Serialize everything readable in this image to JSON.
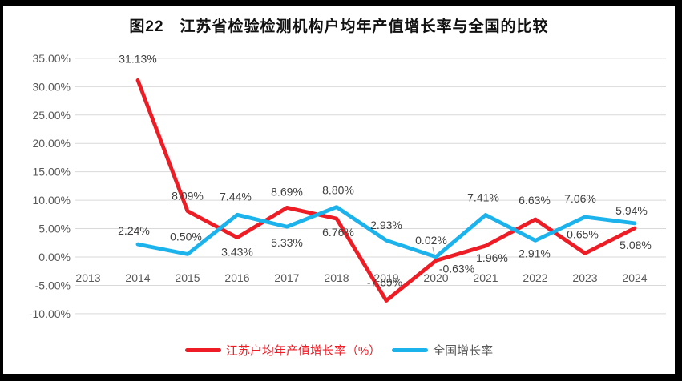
{
  "title": "图22　江苏省检验检测机构户均年产值增长率与全国的比较",
  "colors": {
    "jiangsu_red": "#ee1c25",
    "national_blue": "#1cb2ec",
    "grid": "#d9d9d9",
    "axis_text": "#595959",
    "data_label_text": "#404040",
    "leader": "#a6a6a6",
    "frame": "#000000",
    "background": "#ffffff"
  },
  "chart_data": {
    "type": "line",
    "title": "图22　江苏省检验检测机构户均年产值增长率与全国的比较",
    "xlabel": "",
    "ylabel": "",
    "grid": true,
    "legend_position": "bottom",
    "categories": [
      "2013",
      "2014",
      "2015",
      "2016",
      "2017",
      "2018",
      "2019",
      "2020",
      "2021",
      "2022",
      "2023",
      "2024"
    ],
    "y_axis": {
      "min": -10,
      "max": 35,
      "tick_step": 5,
      "ticks": [
        {
          "value": 35,
          "label": "35.00%"
        },
        {
          "value": 30,
          "label": "30.00%"
        },
        {
          "value": 25,
          "label": "25.00%"
        },
        {
          "value": 20,
          "label": "20.00%"
        },
        {
          "value": 15,
          "label": "15.00%"
        },
        {
          "value": 10,
          "label": "10.00%"
        },
        {
          "value": 5,
          "label": "5.00%"
        },
        {
          "value": 0,
          "label": "0.00%"
        },
        {
          "value": -5,
          "label": "-5.00%"
        },
        {
          "value": -10,
          "label": "-10.00%"
        }
      ]
    },
    "series": [
      {
        "id": "jiangsu",
        "name": "江苏户均年产值增长率（%）",
        "color": "#ee1c25",
        "legend_text_color": "#ee1c25",
        "values": [
          null,
          31.13,
          8.09,
          3.43,
          8.69,
          6.76,
          -7.69,
          -0.63,
          1.96,
          6.63,
          0.65,
          5.08
        ],
        "labels": [
          null,
          "31.13%",
          "8.09%",
          "3.43%",
          "8.69%",
          "6.76%",
          "-7.69%",
          "-0.63%",
          "1.96%",
          "6.63%",
          "0.65%",
          "5.08%"
        ],
        "label_offsets": [
          null,
          [
            0,
            -22
          ],
          [
            0,
            -14
          ],
          [
            0,
            23
          ],
          [
            0,
            -15
          ],
          [
            2,
            22
          ],
          [
            -2,
            -18
          ],
          [
            26,
            15
          ],
          [
            8,
            20
          ],
          [
            -1,
            -19
          ],
          [
            -3,
            -19
          ],
          [
            1,
            26
          ]
        ]
      },
      {
        "id": "national",
        "name": "全国增长率",
        "color": "#1cb2ec",
        "legend_text_color": "#595959",
        "values": [
          null,
          2.24,
          0.5,
          7.44,
          5.33,
          8.8,
          2.93,
          0.02,
          7.41,
          2.91,
          7.06,
          5.94
        ],
        "labels": [
          null,
          "2.24%",
          "0.50%",
          "7.44%",
          "5.33%",
          "8.80%",
          "2.93%",
          "0.02%",
          "7.41%",
          "2.91%",
          "7.06%",
          "5.94%"
        ],
        "label_offsets": [
          null,
          [
            -5,
            -12
          ],
          [
            -2,
            -17
          ],
          [
            -2,
            -18
          ],
          [
            0,
            25
          ],
          [
            2,
            -16
          ],
          [
            0,
            -14
          ],
          [
            -6,
            -16
          ],
          [
            -3,
            -17
          ],
          [
            -1,
            21
          ],
          [
            -6,
            -18
          ],
          [
            -4,
            -11
          ]
        ]
      }
    ],
    "leader_line": {
      "series_index": 1,
      "point_index": 7
    }
  }
}
